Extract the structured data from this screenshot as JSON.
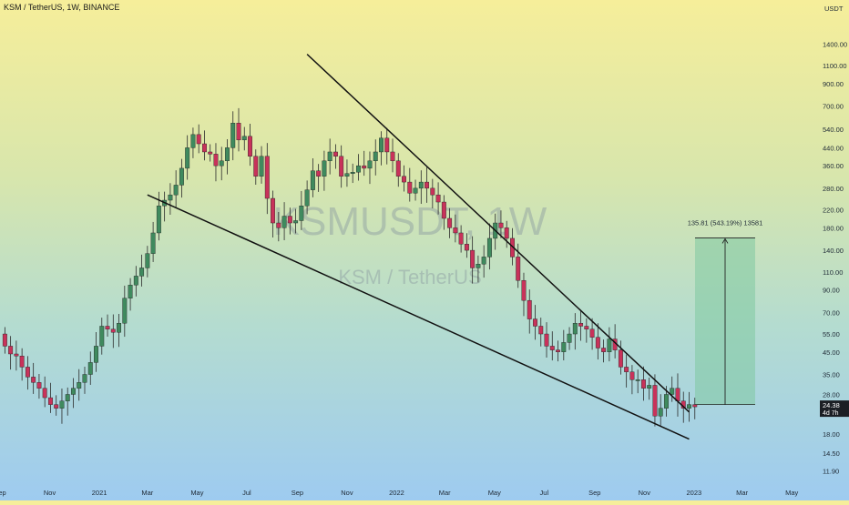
{
  "header": {
    "symbol": "KSM",
    "quote": "TetherUS",
    "interval": "1W",
    "exchange": "BINANCE",
    "title": "KSM / TetherUS, 1W, BINANCE"
  },
  "watermark": {
    "ticker": "KSMUSDT, 1W",
    "pair": "KSM / TetherUS"
  },
  "colors": {
    "up": "#3f8a5e",
    "down": "#c8325a",
    "wick": "#2b2b2b",
    "target_box": "#7fc9a0",
    "trendline": "#111111",
    "price_tag": "#1b1f24"
  },
  "price_axis": {
    "currency": "USDT",
    "scale": "log",
    "last_price": "24.38",
    "countdown": "4d 7h"
  },
  "measure": {
    "label": "135.81 (543.19%) 13581",
    "from_price": 25.0,
    "to_price": 160.81
  },
  "trendlines": [
    {
      "name": "upper-resistance",
      "from": {
        "date": "2021-09-13",
        "price": 1250
      },
      "to": {
        "date": "2022-12-26",
        "price": 23
      }
    },
    {
      "name": "lower-support",
      "from": {
        "date": "2021-03-01",
        "price": 260
      },
      "to": {
        "date": "2022-12-26",
        "price": 17
      }
    }
  ],
  "chart_data": {
    "type": "candlestick",
    "title": "KSM / TetherUS, 1W, BINANCE",
    "xlabel": "",
    "ylabel": "USDT",
    "yscale": "log",
    "ylim": [
      10.5,
      2200
    ],
    "grid": false,
    "xlim": [
      "2020-09-01",
      "2023-05-31"
    ],
    "x_ticks": [
      {
        "date": "2020-09-01",
        "label": "Sep"
      },
      {
        "date": "2020-11-01",
        "label": "Nov"
      },
      {
        "date": "2021-01-01",
        "label": "2021"
      },
      {
        "date": "2021-03-01",
        "label": "Mar"
      },
      {
        "date": "2021-05-01",
        "label": "May"
      },
      {
        "date": "2021-07-01",
        "label": "Jul"
      },
      {
        "date": "2021-09-01",
        "label": "Sep"
      },
      {
        "date": "2021-11-01",
        "label": "Nov"
      },
      {
        "date": "2022-01-01",
        "label": "2022"
      },
      {
        "date": "2022-03-01",
        "label": "Mar"
      },
      {
        "date": "2022-05-01",
        "label": "May"
      },
      {
        "date": "2022-07-01",
        "label": "Jul"
      },
      {
        "date": "2022-09-01",
        "label": "Sep"
      },
      {
        "date": "2022-11-01",
        "label": "Nov"
      },
      {
        "date": "2023-01-01",
        "label": "2023"
      },
      {
        "date": "2023-03-01",
        "label": "Mar"
      },
      {
        "date": "2023-05-01",
        "label": "May"
      }
    ],
    "y_ticks": [
      {
        "value": 1400,
        "label": "1400.00"
      },
      {
        "value": 1100,
        "label": "1100.00"
      },
      {
        "value": 900,
        "label": "900.00"
      },
      {
        "value": 700,
        "label": "700.00"
      },
      {
        "value": 540,
        "label": "540.00"
      },
      {
        "value": 440,
        "label": "440.00"
      },
      {
        "value": 360,
        "label": "360.00"
      },
      {
        "value": 280,
        "label": "280.00"
      },
      {
        "value": 220,
        "label": "220.00"
      },
      {
        "value": 180,
        "label": "180.00"
      },
      {
        "value": 140,
        "label": "140.00"
      },
      {
        "value": 110,
        "label": "110.00"
      },
      {
        "value": 90,
        "label": "90.00"
      },
      {
        "value": 70,
        "label": "70.00"
      },
      {
        "value": 55,
        "label": "55.00"
      },
      {
        "value": 45,
        "label": "45.00"
      },
      {
        "value": 35,
        "label": "35.00"
      },
      {
        "value": 28,
        "label": "28.00"
      },
      {
        "value": 18,
        "label": "18.00"
      },
      {
        "value": 14.5,
        "label": "14.50"
      },
      {
        "value": 11.9,
        "label": "11.90"
      }
    ],
    "close_start": 55,
    "weekly_closes": [
      48,
      44,
      43,
      38,
      34,
      32,
      30,
      27,
      25,
      24,
      26,
      28,
      30,
      32,
      35,
      40,
      48,
      60,
      58,
      56,
      62,
      82,
      95,
      105,
      115,
      135,
      170,
      230,
      245,
      260,
      290,
      350,
      440,
      510,
      460,
      420,
      410,
      360,
      380,
      440,
      580,
      480,
      500,
      400,
      320,
      400,
      250,
      190,
      180,
      205,
      190,
      195,
      230,
      275,
      340,
      320,
      380,
      420,
      400,
      320,
      330,
      335,
      360,
      350,
      380,
      420,
      490,
      420,
      380,
      320,
      300,
      265,
      280,
      300,
      280,
      260,
      240,
      200,
      180,
      170,
      150,
      140,
      115,
      120,
      130,
      160,
      190,
      180,
      160,
      130,
      100,
      80,
      65,
      60,
      55,
      48,
      46,
      45,
      50,
      55,
      62,
      60,
      58,
      53,
      47,
      45,
      52,
      46,
      38,
      36,
      33,
      33,
      30,
      31,
      22,
      24,
      28,
      30,
      26,
      24,
      25,
      24.38
    ]
  }
}
